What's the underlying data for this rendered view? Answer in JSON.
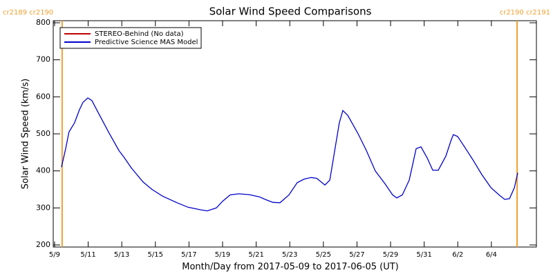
{
  "chart_data": {
    "type": "line",
    "title": "Solar Wind Speed Comparisons",
    "x_label": "Month/Day from 2017-05-09 to 2017-06-05 (UT)",
    "y_label": "Solar Wind Speed (km/s)",
    "xlim": [
      -0.08,
      28.68
    ],
    "xticks": [
      {
        "value": 0,
        "label": "5/9"
      },
      {
        "value": 2,
        "label": "5/11"
      },
      {
        "value": 4,
        "label": "5/13"
      },
      {
        "value": 6,
        "label": "5/15"
      },
      {
        "value": 8,
        "label": "5/17"
      },
      {
        "value": 10,
        "label": "5/19"
      },
      {
        "value": 12,
        "label": "5/21"
      },
      {
        "value": 14,
        "label": "5/23"
      },
      {
        "value": 16,
        "label": "5/25"
      },
      {
        "value": 18,
        "label": "5/27"
      },
      {
        "value": 20,
        "label": "5/29"
      },
      {
        "value": 22,
        "label": "5/31"
      },
      {
        "value": 24,
        "label": "6/2"
      },
      {
        "value": 26,
        "label": "6/4"
      }
    ],
    "ylim": [
      194.4,
      805.6
    ],
    "yticks": [
      200,
      300,
      400,
      500,
      600,
      700,
      800
    ],
    "legend": "upper left",
    "boundaries": [
      {
        "value": 0.45,
        "label": "cr2189 cr2190"
      },
      {
        "value": 27.53,
        "label": "cr2190 cr2191"
      }
    ],
    "boundary_color": "#f0a030",
    "series": [
      {
        "name": "STEREO-Behind (No data)",
        "color": "#c00000",
        "x": [],
        "values": []
      },
      {
        "name": "Predictive Science MAS Model",
        "color": "#0000cc",
        "x": [
          0.41,
          0.66,
          0.86,
          1.19,
          1.48,
          1.69,
          1.98,
          2.22,
          2.51,
          2.92,
          3.21,
          3.83,
          4.16,
          4.57,
          4.9,
          5.27,
          5.8,
          6.42,
          7.24,
          7.94,
          8.68,
          9.09,
          9.63,
          10.0,
          10.45,
          10.95,
          11.56,
          12.18,
          12.59,
          13.0,
          13.42,
          13.95,
          14.44,
          14.86,
          15.27,
          15.6,
          16.09,
          16.38,
          16.95,
          17.16,
          17.45,
          18.07,
          18.56,
          19.09,
          19.67,
          20.12,
          20.37,
          20.7,
          21.11,
          21.52,
          21.81,
          22.18,
          22.51,
          22.84,
          23.29,
          23.62,
          23.74,
          23.99,
          24.4,
          24.9,
          25.43,
          25.97,
          26.46,
          26.79,
          27.08,
          27.37,
          27.57
        ],
        "values": [
          410,
          460,
          505,
          530,
          565,
          585,
          597,
          590,
          565,
          530,
          505,
          455,
          435,
          408,
          390,
          370,
          350,
          332,
          315,
          302,
          295,
          292,
          300,
          318,
          335,
          338,
          336,
          330,
          322,
          315,
          314,
          335,
          368,
          378,
          382,
          380,
          362,
          375,
          530,
          563,
          550,
          500,
          455,
          400,
          365,
          335,
          327,
          335,
          375,
          460,
          465,
          435,
          402,
          402,
          440,
          485,
          498,
          493,
          465,
          430,
          390,
          355,
          335,
          323,
          325,
          355,
          395
        ]
      }
    ]
  }
}
